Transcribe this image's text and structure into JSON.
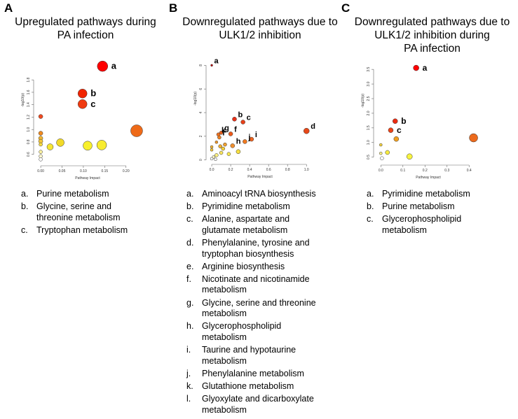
{
  "panels": [
    {
      "letter": "A",
      "title_lines": [
        "Upregulated pathways during",
        "PA infection"
      ],
      "legend": [
        {
          "key": "a.",
          "lines": [
            "Purine metabolism"
          ]
        },
        {
          "key": "b.",
          "lines": [
            "Glycine, serine and",
            "threonine metabolism"
          ]
        },
        {
          "key": "c.",
          "lines": [
            "Tryptophan metabolism"
          ]
        }
      ]
    },
    {
      "letter": "B",
      "title_lines": [
        "Downregulated pathways due to",
        "ULK1/2 inhibition"
      ],
      "legend": [
        {
          "key": "a.",
          "lines": [
            "Aminoacyl tRNA biosynthesis"
          ]
        },
        {
          "key": "b.",
          "lines": [
            "Pyrimidine metabolism"
          ]
        },
        {
          "key": "c.",
          "lines": [
            "Alanine, aspartate and",
            "glutamate metabolism"
          ]
        },
        {
          "key": "d.",
          "lines": [
            "Phenylalanine, tyrosine and",
            "tryptophan biosynthesis"
          ]
        },
        {
          "key": "e.",
          "lines": [
            "Arginine biosynthesis"
          ]
        },
        {
          "key": "f.",
          "lines": [
            "Nicotinate and nicotinamide",
            "metabolism"
          ]
        },
        {
          "key": "g.",
          "lines": [
            "Glycine, serine and threonine",
            "metabolism"
          ]
        },
        {
          "key": "h.",
          "lines": [
            "Glycerophospholipid",
            "metabolism"
          ]
        },
        {
          "key": "i.",
          "lines": [
            "Taurine and hypotaurine",
            "metabolism"
          ]
        },
        {
          "key": "j.",
          "lines": [
            "Phenylalanine metabolism"
          ]
        },
        {
          "key": "k.",
          "lines": [
            "Glutathione metabolism"
          ]
        },
        {
          "key": "l.",
          "lines": [
            "Glyoxylate and dicarboxylate",
            "metabolism"
          ]
        }
      ]
    },
    {
      "letter": "C",
      "title_lines": [
        "Downregulated pathways due to",
        "ULK1/2 inhibition during",
        "PA infection"
      ],
      "legend": [
        {
          "key": "a.",
          "lines": [
            "Pyrimidine metabolism"
          ]
        },
        {
          "key": "b.",
          "lines": [
            "Purine metabolism"
          ]
        },
        {
          "key": "c.",
          "lines": [
            "Glycerophospholipid",
            "metabolism"
          ]
        }
      ]
    }
  ],
  "chart_data": [
    {
      "type": "scatter",
      "title": "Upregulated pathways during PA infection",
      "xlabel": "Pathway Impact",
      "ylabel": "-log10(p)",
      "xlim": [
        -0.01,
        0.23
      ],
      "ylim": [
        0.45,
        2.05
      ],
      "xticks": [
        0.0,
        0.05,
        0.1,
        0.15,
        0.2
      ],
      "xtick_labels": [
        "0.00",
        "0.05",
        "0.10",
        "0.15",
        "0.20"
      ],
      "yticks": [
        0.6,
        0.8,
        1.0,
        1.2,
        1.4,
        1.6,
        1.8
      ],
      "ytick_labels": [
        "0.6",
        "0.8",
        "1.0",
        "1.2",
        "1.4",
        "1.6",
        "1.8"
      ],
      "points": [
        {
          "x": 0.145,
          "y": 2.02,
          "r": 7.5,
          "color": "#ff0000",
          "label": "a"
        },
        {
          "x": 0.098,
          "y": 1.58,
          "r": 6.5,
          "color": "#f12400",
          "label": "b"
        },
        {
          "x": 0.098,
          "y": 1.41,
          "r": 6.5,
          "color": "#f03a10",
          "label": "c"
        },
        {
          "x": 0.225,
          "y": 0.98,
          "r": 8.5,
          "color": "#ee6a18",
          "label": ""
        },
        {
          "x": 0.0,
          "y": 1.21,
          "r": 3,
          "color": "#f04a20",
          "label": ""
        },
        {
          "x": 0.0,
          "y": 0.94,
          "r": 3,
          "color": "#f08a20",
          "label": ""
        },
        {
          "x": 0.0,
          "y": 0.86,
          "r": 3,
          "color": "#f2b430",
          "label": ""
        },
        {
          "x": 0.0,
          "y": 0.81,
          "r": 3,
          "color": "#f6c838",
          "label": ""
        },
        {
          "x": 0.0,
          "y": 0.76,
          "r": 2.5,
          "color": "#f8dc40",
          "label": ""
        },
        {
          "x": 0.0,
          "y": 0.64,
          "r": 2.5,
          "color": "#faf0a0",
          "label": ""
        },
        {
          "x": 0.0,
          "y": 0.57,
          "r": 2.5,
          "color": "#fff8d0",
          "label": ""
        },
        {
          "x": 0.0,
          "y": 0.52,
          "r": 2.5,
          "color": "#ffffff",
          "label": ""
        },
        {
          "x": 0.022,
          "y": 0.72,
          "r": 4.5,
          "color": "#f6e634",
          "label": ""
        },
        {
          "x": 0.046,
          "y": 0.79,
          "r": 5.5,
          "color": "#f2da28",
          "label": ""
        },
        {
          "x": 0.11,
          "y": 0.74,
          "r": 6.5,
          "color": "#f8f02c",
          "label": ""
        },
        {
          "x": 0.143,
          "y": 0.75,
          "r": 7,
          "color": "#f8ec30",
          "label": ""
        }
      ]
    },
    {
      "type": "scatter",
      "title": "Downregulated pathways due to ULK1/2 inhibition",
      "xlabel": "Pathway Impact",
      "ylabel": "-log10(p)",
      "xlim": [
        -0.03,
        1.05
      ],
      "ylim": [
        -0.2,
        8.2
      ],
      "xticks": [
        0.0,
        0.2,
        0.4,
        0.6,
        0.8,
        1.0
      ],
      "xtick_labels": [
        "0.0",
        "0.2",
        "0.4",
        "0.6",
        "0.8",
        "1.0"
      ],
      "yticks": [
        0,
        2,
        4,
        6,
        8
      ],
      "ytick_labels": [
        "0",
        "2",
        "4",
        "6",
        "8"
      ],
      "points": [
        {
          "x": 0.0,
          "y": 8.0,
          "r": 1.5,
          "color": "#c00000",
          "label": "a"
        },
        {
          "x": 0.24,
          "y": 3.45,
          "r": 3,
          "color": "#e83018",
          "label": "b"
        },
        {
          "x": 0.33,
          "y": 3.2,
          "r": 3,
          "color": "#e84018",
          "label": "c"
        },
        {
          "x": 1.0,
          "y": 2.45,
          "r": 4,
          "color": "#e84818",
          "label": "d"
        },
        {
          "x": 0.2,
          "y": 2.2,
          "r": 3,
          "color": "#ec5818",
          "label": "f"
        },
        {
          "x": 0.1,
          "y": 2.3,
          "r": 2.5,
          "color": "#ec6420",
          "label": "g"
        },
        {
          "x": 0.07,
          "y": 2.15,
          "r": 2.5,
          "color": "#ee7020",
          "label": "k"
        },
        {
          "x": 0.08,
          "y": 1.9,
          "r": 2.5,
          "color": "#f08020",
          "label": "l"
        },
        {
          "x": 0.42,
          "y": 1.75,
          "r": 3,
          "color": "#ee6420",
          "label": "i"
        },
        {
          "x": 0.35,
          "y": 1.55,
          "r": 3,
          "color": "#f07a20",
          "label": "j"
        },
        {
          "x": 0.22,
          "y": 1.2,
          "r": 3,
          "color": "#f09030",
          "label": "h"
        },
        {
          "x": 0.14,
          "y": 1.3,
          "r": 2.5,
          "color": "#f0a030",
          "label": ""
        },
        {
          "x": 0.05,
          "y": 1.5,
          "r": 2,
          "color": "#f09828",
          "label": ""
        },
        {
          "x": 0.09,
          "y": 1.15,
          "r": 2.5,
          "color": "#f2b030",
          "label": ""
        },
        {
          "x": 0.0,
          "y": 1.1,
          "r": 2,
          "color": "#f4b838",
          "label": ""
        },
        {
          "x": 0.0,
          "y": 0.85,
          "r": 2,
          "color": "#f6c838",
          "label": ""
        },
        {
          "x": 0.12,
          "y": 0.95,
          "r": 2.5,
          "color": "#f6d038",
          "label": ""
        },
        {
          "x": 0.28,
          "y": 0.7,
          "r": 3,
          "color": "#f8e040",
          "label": ""
        },
        {
          "x": 0.18,
          "y": 0.5,
          "r": 2.5,
          "color": "#f8e850",
          "label": ""
        },
        {
          "x": 0.1,
          "y": 0.6,
          "r": 2.5,
          "color": "#fae660",
          "label": ""
        },
        {
          "x": 0.05,
          "y": 0.4,
          "r": 2.5,
          "color": "#fcf080",
          "label": ""
        },
        {
          "x": 0.02,
          "y": 0.25,
          "r": 2,
          "color": "#fdf8c0",
          "label": ""
        },
        {
          "x": 0.0,
          "y": 0.1,
          "r": 2,
          "color": "#ffffff",
          "label": ""
        },
        {
          "x": 0.04,
          "y": 0.05,
          "r": 2,
          "color": "#ffffff",
          "label": ""
        }
      ]
    },
    {
      "type": "scatter",
      "title": "Downregulated pathways due to ULK1/2 inhibition during PA infection",
      "xlabel": "Pathway Impact",
      "ylabel": "-log10(p)",
      "xlim": [
        -0.02,
        0.45
      ],
      "ylim": [
        0.3,
        3.6
      ],
      "xticks": [
        0.0,
        0.1,
        0.2,
        0.3,
        0.4
      ],
      "xtick_labels": [
        "0.0",
        "0.1",
        "0.2",
        "0.3",
        "0.4"
      ],
      "yticks": [
        0.5,
        1.0,
        1.5,
        2.0,
        2.5,
        3.0,
        3.5
      ],
      "ytick_labels": [
        "0.5",
        "1.0",
        "1.5",
        "2.0",
        "2.5",
        "3.0",
        "3.5"
      ],
      "points": [
        {
          "x": 0.16,
          "y": 3.55,
          "r": 4,
          "color": "#ff0000",
          "label": "a"
        },
        {
          "x": 0.065,
          "y": 1.73,
          "r": 3.5,
          "color": "#ec2a10",
          "label": "b"
        },
        {
          "x": 0.045,
          "y": 1.42,
          "r": 3.5,
          "color": "#ee4418",
          "label": "c"
        },
        {
          "x": 0.07,
          "y": 1.12,
          "r": 3.5,
          "color": "#f0a020",
          "label": ""
        },
        {
          "x": 0.42,
          "y": 1.16,
          "r": 6,
          "color": "#ec6a1c",
          "label": ""
        },
        {
          "x": 0.0,
          "y": 0.92,
          "r": 2,
          "color": "#f6d440",
          "label": ""
        },
        {
          "x": 0.03,
          "y": 0.66,
          "r": 3,
          "color": "#f8ec40",
          "label": ""
        },
        {
          "x": 0.0,
          "y": 0.63,
          "r": 2,
          "color": "#faf080",
          "label": ""
        },
        {
          "x": 0.13,
          "y": 0.52,
          "r": 4,
          "color": "#f8f440",
          "label": ""
        },
        {
          "x": 0.005,
          "y": 0.46,
          "r": 2.5,
          "color": "#ffffff",
          "label": ""
        }
      ]
    }
  ]
}
